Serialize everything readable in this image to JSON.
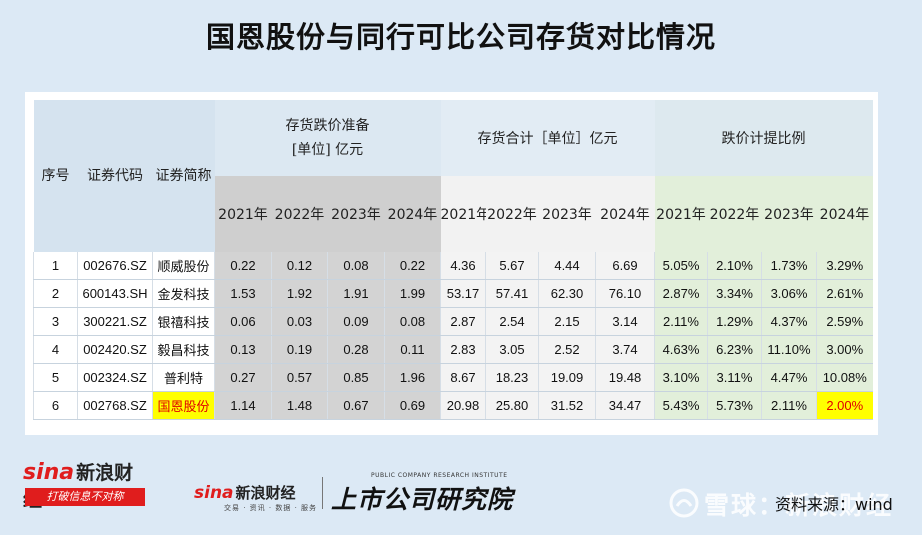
{
  "title": "国恩股份与同行可比公司存货对比情况",
  "headers": {
    "seq": "序号",
    "code": "证券代码",
    "name": "证券简称",
    "group1_line1": "存货跌价准备",
    "group1_line2": "[单位] 亿元",
    "group2": "存货合计［单位］亿元",
    "group3": "跌价计提比例",
    "years": [
      "2021年",
      "2022年",
      "2023年",
      "2024年"
    ]
  },
  "rows": [
    {
      "seq": "1",
      "code": "002676.SZ",
      "name": "顺威股份",
      "reserve": [
        "0.22",
        "0.12",
        "0.08",
        "0.22"
      ],
      "inventory": [
        "4.36",
        "5.67",
        "4.44",
        "6.69"
      ],
      "ratio": [
        "5.05%",
        "2.10%",
        "1.73%",
        "3.29%"
      ]
    },
    {
      "seq": "2",
      "code": "600143.SH",
      "name": "金发科技",
      "reserve": [
        "1.53",
        "1.92",
        "1.91",
        "1.99"
      ],
      "inventory": [
        "53.17",
        "57.41",
        "62.30",
        "76.10"
      ],
      "ratio": [
        "2.87%",
        "3.34%",
        "3.06%",
        "2.61%"
      ]
    },
    {
      "seq": "3",
      "code": "300221.SZ",
      "name": "银禧科技",
      "reserve": [
        "0.06",
        "0.03",
        "0.09",
        "0.08"
      ],
      "inventory": [
        "2.87",
        "2.54",
        "2.15",
        "3.14"
      ],
      "ratio": [
        "2.11%",
        "1.29%",
        "4.37%",
        "2.59%"
      ]
    },
    {
      "seq": "4",
      "code": "002420.SZ",
      "name": "毅昌科技",
      "reserve": [
        "0.13",
        "0.19",
        "0.28",
        "0.11"
      ],
      "inventory": [
        "2.83",
        "3.05",
        "2.52",
        "3.74"
      ],
      "ratio": [
        "4.63%",
        "6.23%",
        "11.10%",
        "3.00%"
      ]
    },
    {
      "seq": "5",
      "code": "002324.SZ",
      "name": "普利特",
      "reserve": [
        "0.27",
        "0.57",
        "0.85",
        "1.96"
      ],
      "inventory": [
        "8.67",
        "18.23",
        "19.09",
        "19.48"
      ],
      "ratio": [
        "3.10%",
        "3.11%",
        "4.47%",
        "10.08%"
      ]
    },
    {
      "seq": "6",
      "code": "002768.SZ",
      "name": "国恩股份",
      "reserve": [
        "1.14",
        "1.48",
        "0.67",
        "0.69"
      ],
      "inventory": [
        "20.98",
        "25.80",
        "31.52",
        "34.47"
      ],
      "ratio": [
        "5.43%",
        "5.73%",
        "2.11%",
        "2.00%"
      ]
    }
  ],
  "logos": {
    "sina_brand": "sina",
    "sina_cn": "新浪财经",
    "sina_slogan": "打破信息不对称",
    "sina2_sub": "交易 · 资讯 · 数据 · 服务",
    "institute_en": "PUBLIC COMPANY RESEARCH INSTITUTE",
    "institute_cn": "上市公司研究院"
  },
  "source": "资料来源：wind",
  "watermark": "雪球：新浪财经"
}
